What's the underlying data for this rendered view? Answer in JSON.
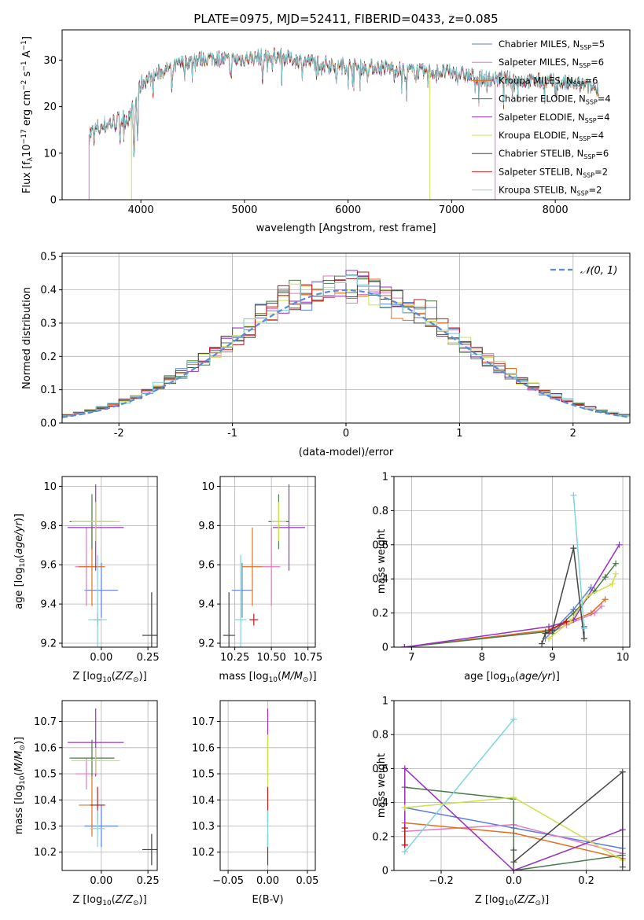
{
  "chart_data": [
    {
      "id": "spectrum",
      "type": "line",
      "title": "PLATE=0975, MJD=52411, FIBERID=0433, z=0.085",
      "xlabel": "wavelength [Angstrom, rest frame]",
      "ylabel": "Flux [f_λ 10^-17 erg cm^-2 s^-1 A^-1]",
      "xlim": [
        3240,
        8720
      ],
      "ylim": [
        0,
        36.5
      ],
      "xticks": [
        4000,
        5000,
        6000,
        7000,
        8000
      ],
      "yticks": [
        0,
        10,
        20,
        30
      ],
      "grid": false,
      "legend_position": "top-right",
      "continuum": [
        [
          3500,
          14
        ],
        [
          3650,
          16
        ],
        [
          3800,
          17
        ],
        [
          3900,
          18
        ],
        [
          3950,
          21
        ],
        [
          4000,
          25
        ],
        [
          4150,
          27
        ],
        [
          4300,
          28.5
        ],
        [
          4500,
          30
        ],
        [
          4700,
          30.5
        ],
        [
          4900,
          30
        ],
        [
          5100,
          30.5
        ],
        [
          5300,
          31
        ],
        [
          5500,
          30
        ],
        [
          5700,
          29.5
        ],
        [
          5900,
          29
        ],
        [
          6100,
          28.5
        ],
        [
          6300,
          28.5
        ],
        [
          6500,
          28
        ],
        [
          6700,
          27.5
        ],
        [
          6900,
          27.5
        ],
        [
          7100,
          27
        ],
        [
          7300,
          26
        ],
        [
          7500,
          26
        ],
        [
          7700,
          25.5
        ],
        [
          7900,
          25.5
        ],
        [
          8100,
          25
        ],
        [
          8300,
          24.5
        ],
        [
          8400,
          24
        ]
      ],
      "dips": [
        [
          3934,
          14
        ],
        [
          3969,
          10
        ],
        [
          4300,
          6
        ],
        [
          4861,
          4
        ],
        [
          5175,
          5
        ],
        [
          5270,
          3
        ],
        [
          5890,
          5
        ],
        [
          6563,
          2
        ]
      ],
      "drops": [
        {
          "series": "Salpeter MILES",
          "x": 3500
        },
        {
          "series": "Kroupa ELODIE",
          "x": 3910
        },
        {
          "series": "Kroupa ELODIE",
          "x": 6790
        },
        {
          "series": "Salpeter MILES",
          "x": 7420
        }
      ],
      "series": [
        {
          "name": "Chabrier MILES",
          "color": "#5b7fd6",
          "label": "Chabrier MILES, N",
          "sub": "SSP",
          "suffix": "=5"
        },
        {
          "name": "Salpeter MILES",
          "color": "#e377c2",
          "label": "Salpeter MILES, N",
          "sub": "SSP",
          "suffix": "=6"
        },
        {
          "name": "Kroupa MILES",
          "color": "#e07020",
          "label": "Kroupa MILES, N",
          "sub": "SSP",
          "suffix": "=6"
        },
        {
          "name": "Chabrier ELODIE",
          "color": "#4a7a4a",
          "label": "Chabrier ELODIE, N",
          "sub": "SSP",
          "suffix": "=4"
        },
        {
          "name": "Salpeter ELODIE",
          "color": "#9b30c0",
          "label": "Salpeter ELODIE, N",
          "sub": "SSP",
          "suffix": "=4"
        },
        {
          "name": "Kroupa ELODIE",
          "color": "#cfe04c",
          "label": "Kroupa ELODIE, N",
          "sub": "SSP",
          "suffix": "=4"
        },
        {
          "name": "Chabrier STELIB",
          "color": "#444444",
          "label": "Chabrier STELIB, N",
          "sub": "SSP",
          "suffix": "=6"
        },
        {
          "name": "Salpeter STELIB",
          "color": "#b81c1c",
          "label": "Salpeter STELIB, N",
          "sub": "SSP",
          "suffix": "=2"
        },
        {
          "name": "Kroupa STELIB",
          "color": "#7fd4dc",
          "label": "Kroupa STELIB, N",
          "sub": "SSP",
          "suffix": "=2"
        }
      ]
    },
    {
      "id": "residuals",
      "type": "bar",
      "xlabel": "(data-model)/error",
      "ylabel": "Normed distribution",
      "xlim": [
        -2.5,
        2.5
      ],
      "ylim": [
        0,
        0.51
      ],
      "xticks": [
        -2,
        -1,
        0,
        1,
        2
      ],
      "yticks": [
        0.0,
        0.1,
        0.2,
        0.3,
        0.4,
        0.5
      ],
      "grid": true,
      "bin_width": 0.1,
      "reference_curve": {
        "name": "N(0,1)",
        "label": "𝒩(0, 1)",
        "color": "#5b8ad6",
        "style": "dashed"
      },
      "legend_position": "top-right"
    },
    {
      "id": "age-vs-Z",
      "type": "scatter",
      "xlabel": "Z [log10(Z/Z⊙)]",
      "ylabel": "age [log10(age/yr)]",
      "xlim": [
        -0.21,
        0.3
      ],
      "ylim": [
        9.18,
        10.05
      ],
      "xticks": [
        0.0,
        0.25
      ],
      "xticklabels": [
        "0.00",
        "0.25"
      ],
      "yticks": [
        9.2,
        9.4,
        9.6,
        9.8,
        10.0
      ],
      "grid": true,
      "points": [
        {
          "series": "Chabrier MILES",
          "x": 0.0,
          "y": 9.47,
          "xerr": 0.09,
          "yerr": 0.14
        },
        {
          "series": "Salpeter MILES",
          "x": -0.08,
          "y": 9.59,
          "xerr": 0.06,
          "yerr": 0.2
        },
        {
          "series": "Kroupa MILES",
          "x": -0.05,
          "y": 9.59,
          "xerr": 0.07,
          "yerr": 0.2
        },
        {
          "series": "Chabrier ELODIE",
          "x": -0.05,
          "y": 9.82,
          "xerr": 0.12,
          "yerr": 0.14
        },
        {
          "series": "Salpeter ELODIE",
          "x": -0.03,
          "y": 9.79,
          "xerr": 0.15,
          "yerr": 0.22
        },
        {
          "series": "Kroupa ELODIE",
          "x": -0.03,
          "y": 9.82,
          "xerr": 0.13,
          "yerr": 0.1
        },
        {
          "series": "Chabrier STELIB",
          "x": 0.27,
          "y": 9.24,
          "xerr": 0.05,
          "yerr": 0.22
        },
        {
          "series": "Salpeter STELIB",
          "x": -0.02,
          "y": 9.32,
          "xerr": 0.02,
          "yerr": 0.03
        },
        {
          "series": "Kroupa STELIB",
          "x": -0.02,
          "y": 9.32,
          "xerr": 0.05,
          "yerr": 0.33
        }
      ]
    },
    {
      "id": "age-vs-mass",
      "type": "scatter",
      "xlabel": "mass [log10(M/M⊙)]",
      "xlim": [
        10.15,
        10.8
      ],
      "ylim": [
        9.18,
        10.05
      ],
      "xticks": [
        10.25,
        10.5,
        10.75
      ],
      "xticklabels": [
        "10.25",
        "10.50",
        "10.75"
      ],
      "yticks": [
        9.2,
        9.4,
        9.6,
        9.8,
        10.0
      ],
      "grid": true,
      "points": [
        {
          "series": "Chabrier MILES",
          "x": 10.3,
          "y": 9.47,
          "xerr": 0.07,
          "yerr": 0.14
        },
        {
          "series": "Salpeter MILES",
          "x": 10.5,
          "y": 9.59,
          "xerr": 0.06,
          "yerr": 0.2
        },
        {
          "series": "Kroupa MILES",
          "x": 10.37,
          "y": 9.59,
          "xerr": 0.07,
          "yerr": 0.2
        },
        {
          "series": "Chabrier ELODIE",
          "x": 10.55,
          "y": 9.82,
          "xerr": 0.07,
          "yerr": 0.14
        },
        {
          "series": "Salpeter ELODIE",
          "x": 10.62,
          "y": 9.79,
          "xerr": 0.11,
          "yerr": 0.22
        },
        {
          "series": "Kroupa ELODIE",
          "x": 10.55,
          "y": 9.82,
          "xerr": 0.05,
          "yerr": 0.1
        },
        {
          "series": "Chabrier STELIB",
          "x": 10.21,
          "y": 9.24,
          "xerr": 0.04,
          "yerr": 0.22
        },
        {
          "series": "Salpeter STELIB",
          "x": 10.38,
          "y": 9.32,
          "xerr": 0.03,
          "yerr": 0.03
        },
        {
          "series": "Kroupa STELIB",
          "x": 10.29,
          "y": 9.32,
          "xerr": 0.04,
          "yerr": 0.33
        }
      ]
    },
    {
      "id": "weight-vs-age",
      "type": "line",
      "xlabel": "age [log10(age/yr)]",
      "ylabel": "mass weight",
      "xlim": [
        6.75,
        10.1
      ],
      "ylim": [
        0,
        1.0
      ],
      "xticks": [
        7,
        8,
        9,
        10
      ],
      "yticks": [
        0.0,
        0.2,
        0.4,
        0.6,
        0.8,
        1.0
      ],
      "grid": true,
      "series": [
        {
          "name": "Chabrier MILES",
          "x": [
            8.9,
            9.3,
            9.55
          ],
          "y": [
            0.05,
            0.22,
            0.35
          ]
        },
        {
          "name": "Salpeter MILES",
          "x": [
            8.95,
            9.2,
            9.6,
            9.7
          ],
          "y": [
            0.08,
            0.13,
            0.2,
            0.24
          ]
        },
        {
          "name": "Kroupa MILES",
          "x": [
            6.9,
            8.95,
            9.55,
            9.75
          ],
          "y": [
            0,
            0.1,
            0.2,
            0.28
          ]
        },
        {
          "name": "Chabrier ELODIE",
          "x": [
            6.9,
            8.9,
            9.0,
            9.3,
            9.6,
            9.75,
            9.9
          ],
          "y": [
            0,
            0.09,
            0.08,
            0.2,
            0.33,
            0.41,
            0.49
          ]
        },
        {
          "name": "Salpeter ELODIE",
          "x": [
            6.9,
            8.95,
            9.3,
            9.95
          ],
          "y": [
            0,
            0.12,
            0.16,
            0.6
          ]
        },
        {
          "name": "Kroupa ELODIE",
          "x": [
            8.95,
            9.25,
            9.5,
            9.85,
            9.9
          ],
          "y": [
            0.05,
            0.15,
            0.3,
            0.37,
            0.43
          ]
        },
        {
          "name": "Chabrier STELIB",
          "x": [
            8.85,
            8.9,
            9.0,
            9.3,
            9.45,
            9.45
          ],
          "y": [
            0.02,
            0.08,
            0.1,
            0.58,
            0.05,
            0.12
          ]
        },
        {
          "name": "Salpeter STELIB",
          "x": [
            8.95,
            9.2
          ],
          "y": [
            0.1,
            0.15
          ]
        },
        {
          "name": "Kroupa STELIB",
          "x": [
            9.3,
            9.45
          ],
          "y": [
            0.89,
            0.11
          ]
        }
      ]
    },
    {
      "id": "mass-vs-Z",
      "type": "scatter",
      "xlabel": "Z [log10(Z/Z⊙)]",
      "ylabel": "mass [log10(M/M⊙)]",
      "xlim": [
        -0.21,
        0.3
      ],
      "ylim": [
        10.13,
        10.78
      ],
      "xticks": [
        0.0,
        0.25
      ],
      "xticklabels": [
        "0.00",
        "0.25"
      ],
      "yticks": [
        10.2,
        10.3,
        10.4,
        10.5,
        10.6,
        10.7
      ],
      "grid": true,
      "points": [
        {
          "series": "Chabrier MILES",
          "x": 0.0,
          "y": 10.3,
          "xerr": 0.09,
          "yerr": 0.08
        },
        {
          "series": "Salpeter MILES",
          "x": -0.08,
          "y": 10.5,
          "xerr": 0.06,
          "yerr": 0.06
        },
        {
          "series": "Kroupa MILES",
          "x": -0.05,
          "y": 10.38,
          "xerr": 0.07,
          "yerr": 0.12
        },
        {
          "series": "Chabrier ELODIE",
          "x": -0.05,
          "y": 10.56,
          "xerr": 0.12,
          "yerr": 0.07
        },
        {
          "series": "Salpeter ELODIE",
          "x": -0.03,
          "y": 10.62,
          "xerr": 0.15,
          "yerr": 0.13
        },
        {
          "series": "Kroupa ELODIE",
          "x": -0.03,
          "y": 10.55,
          "xerr": 0.13,
          "yerr": 0.05
        },
        {
          "series": "Chabrier STELIB",
          "x": 0.27,
          "y": 10.21,
          "xerr": 0.05,
          "yerr": 0.06
        },
        {
          "series": "Salpeter STELIB",
          "x": -0.02,
          "y": 10.38,
          "xerr": 0.04,
          "yerr": 0.07
        },
        {
          "series": "Kroupa STELIB",
          "x": -0.02,
          "y": 10.29,
          "xerr": 0.04,
          "yerr": 0.07
        }
      ]
    },
    {
      "id": "mass-vs-EBV",
      "type": "scatter",
      "xlabel": "E(B-V)",
      "xlim": [
        -0.06,
        0.06
      ],
      "ylim": [
        10.13,
        10.78
      ],
      "xticks": [
        -0.05,
        0.0,
        0.05
      ],
      "xticklabels": [
        "−0.05",
        "0.00",
        "0.05"
      ],
      "yticks": [
        10.2,
        10.3,
        10.4,
        10.5,
        10.6,
        10.7
      ],
      "grid": true,
      "points": [
        {
          "series": "Chabrier STELIB",
          "x": 0,
          "y": 10.21,
          "xerr": 0,
          "yerr": 0.06
        },
        {
          "series": "Salpeter ELODIE",
          "x": 0,
          "y": 10.62,
          "xerr": 0,
          "yerr": 0.13
        },
        {
          "series": "Kroupa ELODIE",
          "x": 0,
          "y": 10.55,
          "xerr": 0,
          "yerr": 0.1
        },
        {
          "series": "Salpeter STELIB",
          "x": 0,
          "y": 10.38,
          "xerr": 0,
          "yerr": 0.07
        },
        {
          "series": "Kroupa STELIB",
          "x": 0,
          "y": 10.29,
          "xerr": 0,
          "yerr": 0.07
        }
      ]
    },
    {
      "id": "weight-vs-Z",
      "type": "line",
      "xlabel": "Z [log10(Z/Z⊙)]",
      "ylabel": "mass weight",
      "xlim": [
        -0.33,
        0.32
      ],
      "ylim": [
        0,
        1.0
      ],
      "xticks": [
        -0.2,
        0.0,
        0.2
      ],
      "xticklabels": [
        "−0.2",
        "0.0",
        "0.2"
      ],
      "yticks": [
        0.0,
        0.2,
        0.4,
        0.6,
        0.8,
        1.0
      ],
      "grid": true,
      "series": [
        {
          "name": "Chabrier MILES",
          "x": [
            -0.3,
            0.0,
            0.3
          ],
          "y": [
            0.37,
            0.25,
            0.13
          ]
        },
        {
          "name": "Salpeter MILES",
          "x": [
            -0.3,
            0.0,
            0.3
          ],
          "y": [
            0.23,
            0.27,
            0.1
          ]
        },
        {
          "name": "Kroupa MILES",
          "x": [
            -0.3,
            0.0,
            0.3
          ],
          "y": [
            0.28,
            0.22,
            0.07
          ]
        },
        {
          "name": "Chabrier ELODIE",
          "x": [
            -0.3,
            0.0,
            0.0,
            0.3
          ],
          "y": [
            0.49,
            0.42,
            0.0,
            0.09
          ]
        },
        {
          "name": "Salpeter ELODIE",
          "x": [
            -0.3,
            -0.3,
            0.0,
            0.3
          ],
          "y": [
            0.15,
            0.6,
            0.0,
            0.24
          ]
        },
        {
          "name": "Kroupa ELODIE",
          "x": [
            -0.3,
            0.0,
            0.3
          ],
          "y": [
            0.37,
            0.43,
            0.06
          ]
        },
        {
          "name": "Chabrier STELIB",
          "x": [
            0.0,
            0.0,
            0.3,
            0.3
          ],
          "y": [
            0.12,
            0.05,
            0.58,
            0.02
          ]
        },
        {
          "name": "Salpeter STELIB",
          "x": [
            -0.3,
            -0.3
          ],
          "y": [
            0.25,
            0.15
          ]
        },
        {
          "name": "Kroupa STELIB",
          "x": [
            -0.3,
            0.0
          ],
          "y": [
            0.11,
            0.89
          ]
        }
      ]
    }
  ]
}
